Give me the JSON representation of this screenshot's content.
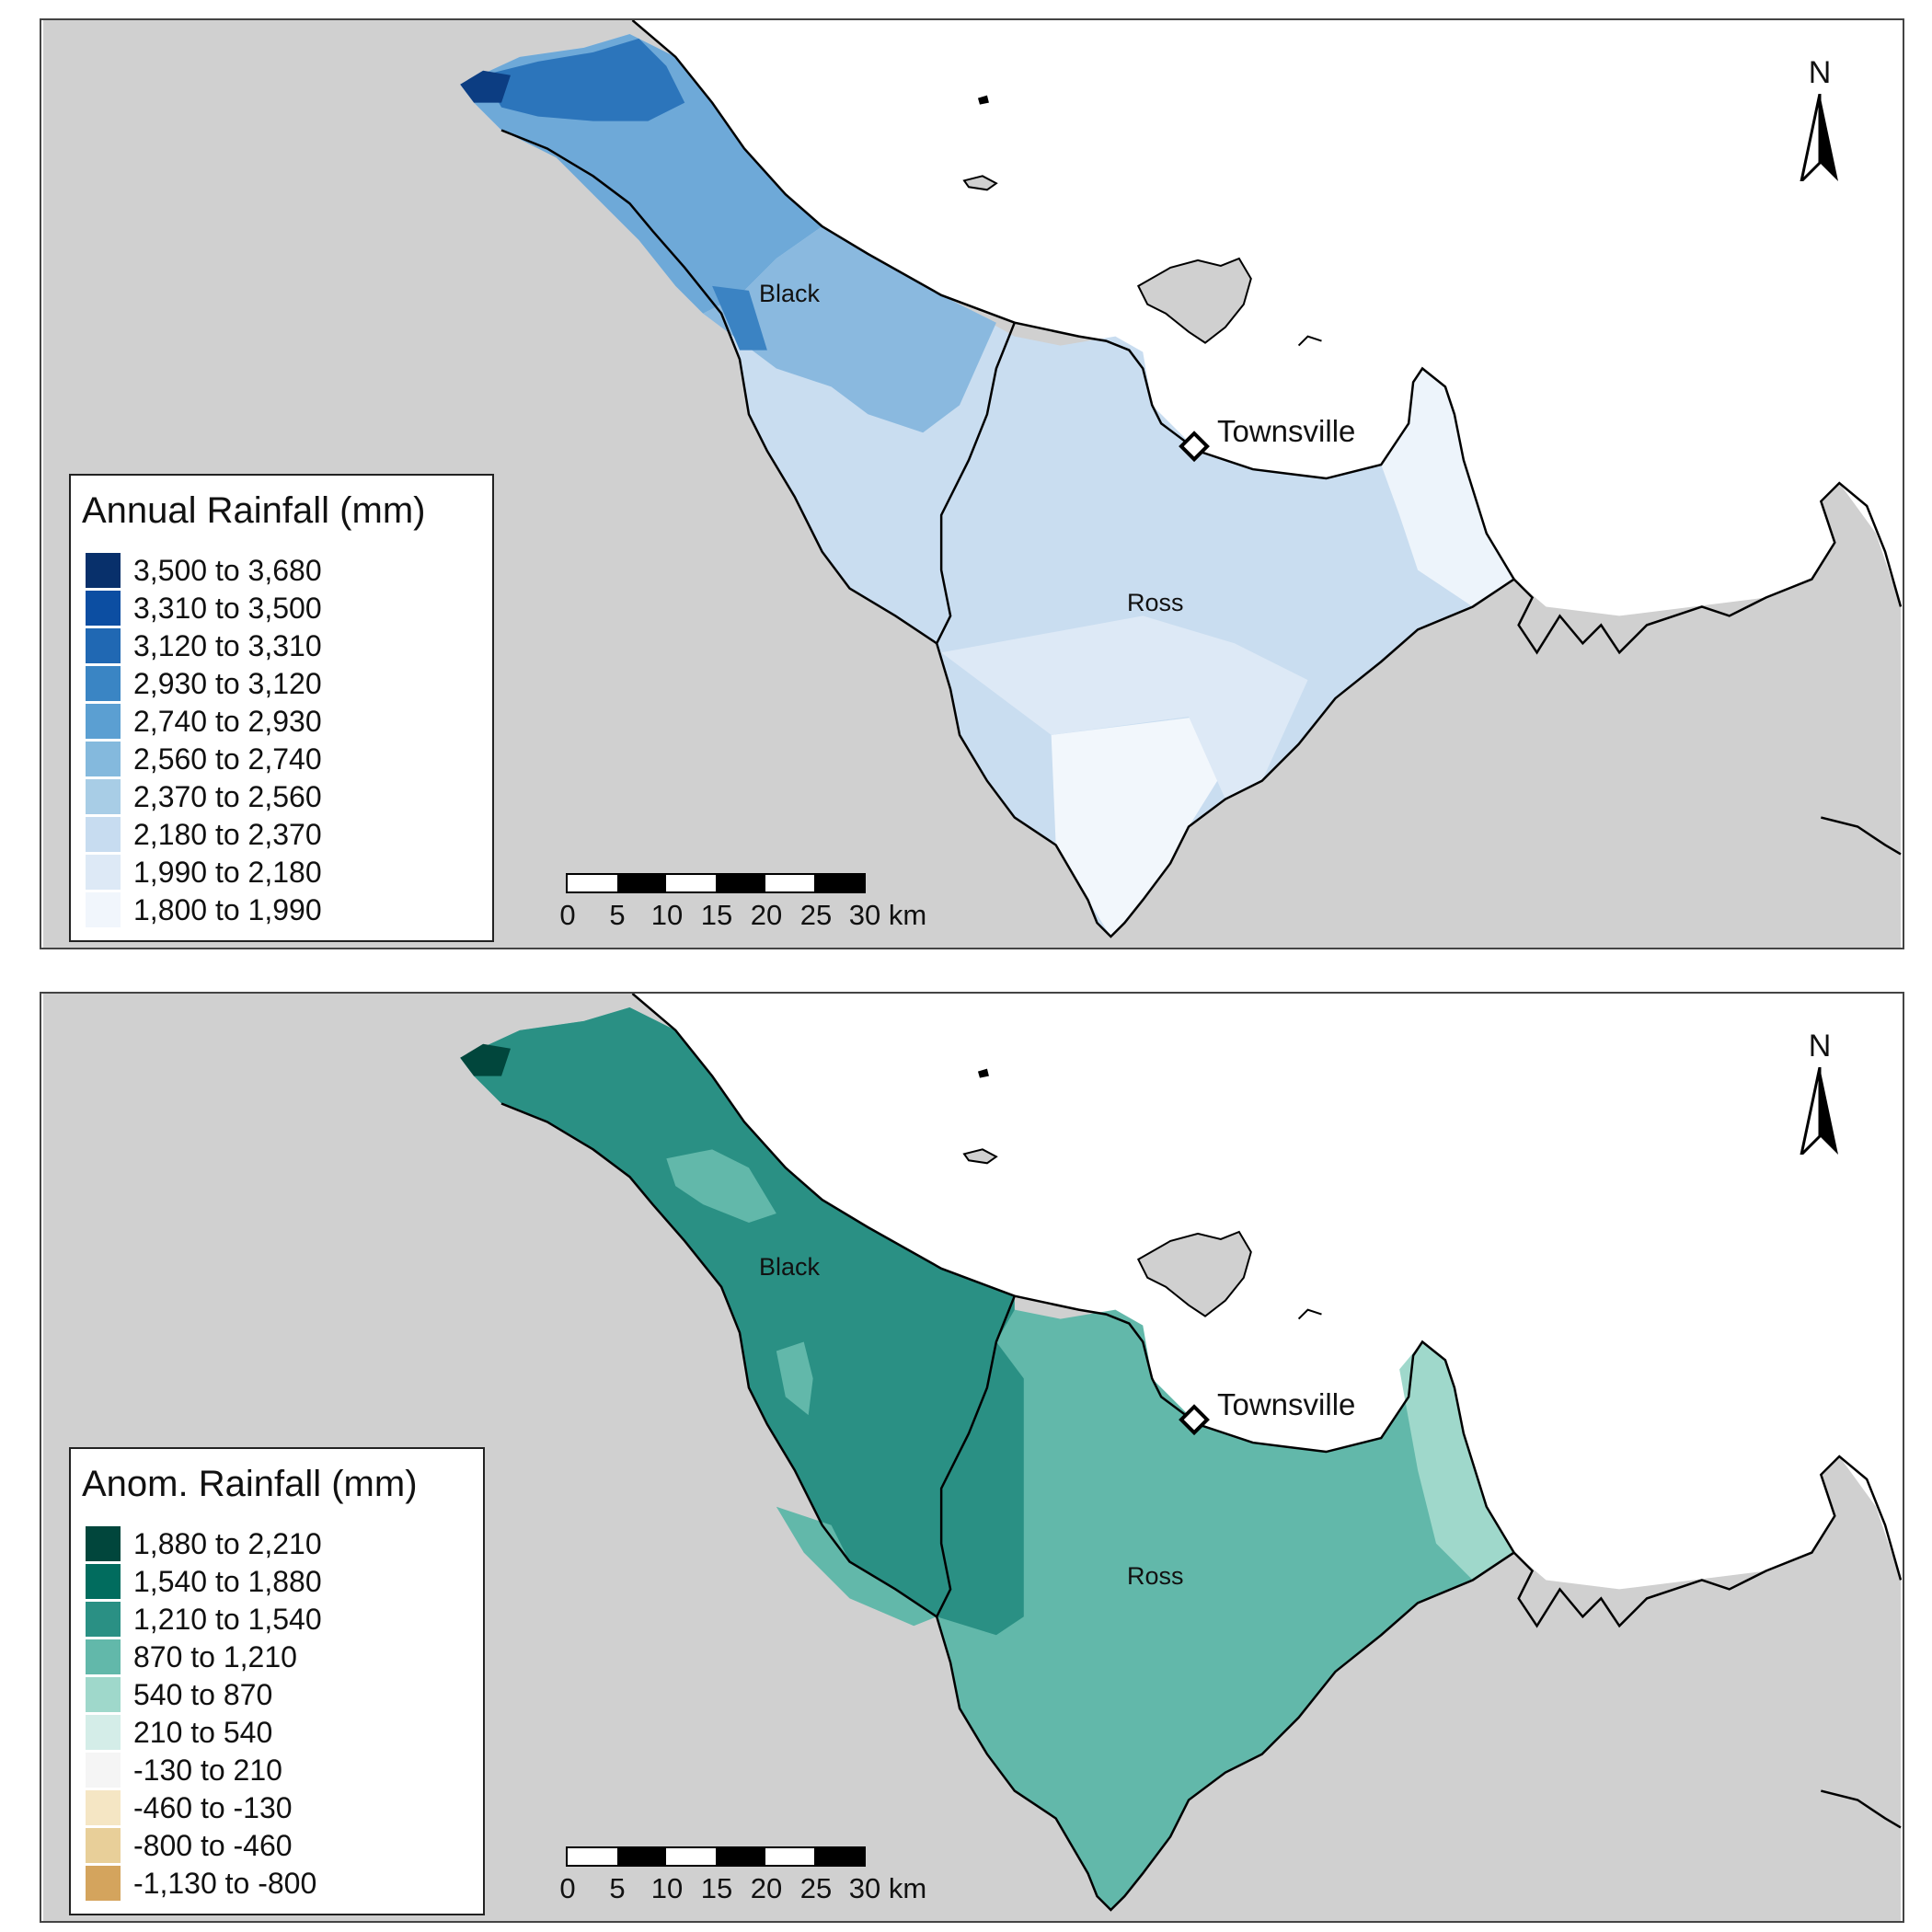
{
  "north_label": "N",
  "places": {
    "black": "Black",
    "ross": "Ross",
    "town": "Townsville"
  },
  "scalebar": {
    "ticks": [
      "0",
      "5",
      "10",
      "15",
      "20",
      "25",
      "30 km"
    ]
  },
  "maps": [
    {
      "legend_title": "Annual Rainfall (mm)",
      "legend": [
        {
          "label": "3,500 to 3,680",
          "color": "#08306b"
        },
        {
          "label": "3,310 to 3,500",
          "color": "#0c4ea2"
        },
        {
          "label": "3,120 to 3,310",
          "color": "#2068b3"
        },
        {
          "label": "2,930 to 3,120",
          "color": "#3a85c4"
        },
        {
          "label": "2,740 to 2,930",
          "color": "#5b9fd2"
        },
        {
          "label": "2,560 to 2,740",
          "color": "#84b9dd"
        },
        {
          "label": "2,370 to 2,560",
          "color": "#a8cde6"
        },
        {
          "label": "2,180 to 2,370",
          "color": "#c7dcf0"
        },
        {
          "label": "1,990 to 2,180",
          "color": "#dde9f6"
        },
        {
          "label": "1,800 to 1,990",
          "color": "#f1f6fc"
        }
      ]
    },
    {
      "legend_title": "Anom. Rainfall (mm)",
      "legend": [
        {
          "label": "1,880 to 2,210",
          "color": "#01463c"
        },
        {
          "label": "1,540 to 1,880",
          "color": "#016c5e"
        },
        {
          "label": "1,210 to 1,540",
          "color": "#2a9084"
        },
        {
          "label": "870 to 1,210",
          "color": "#62b8aa"
        },
        {
          "label": "540 to 870",
          "color": "#9fd8cb"
        },
        {
          "label": "210 to 540",
          "color": "#d4ede8"
        },
        {
          "label": "-130 to 210",
          "color": "#f5f5f5"
        },
        {
          "label": "-460 to -130",
          "color": "#f5e6c4"
        },
        {
          "label": "-800 to -460",
          "color": "#e8cf99"
        },
        {
          "label": "-1,130 to -800",
          "color": "#d4a45d"
        }
      ]
    }
  ]
}
